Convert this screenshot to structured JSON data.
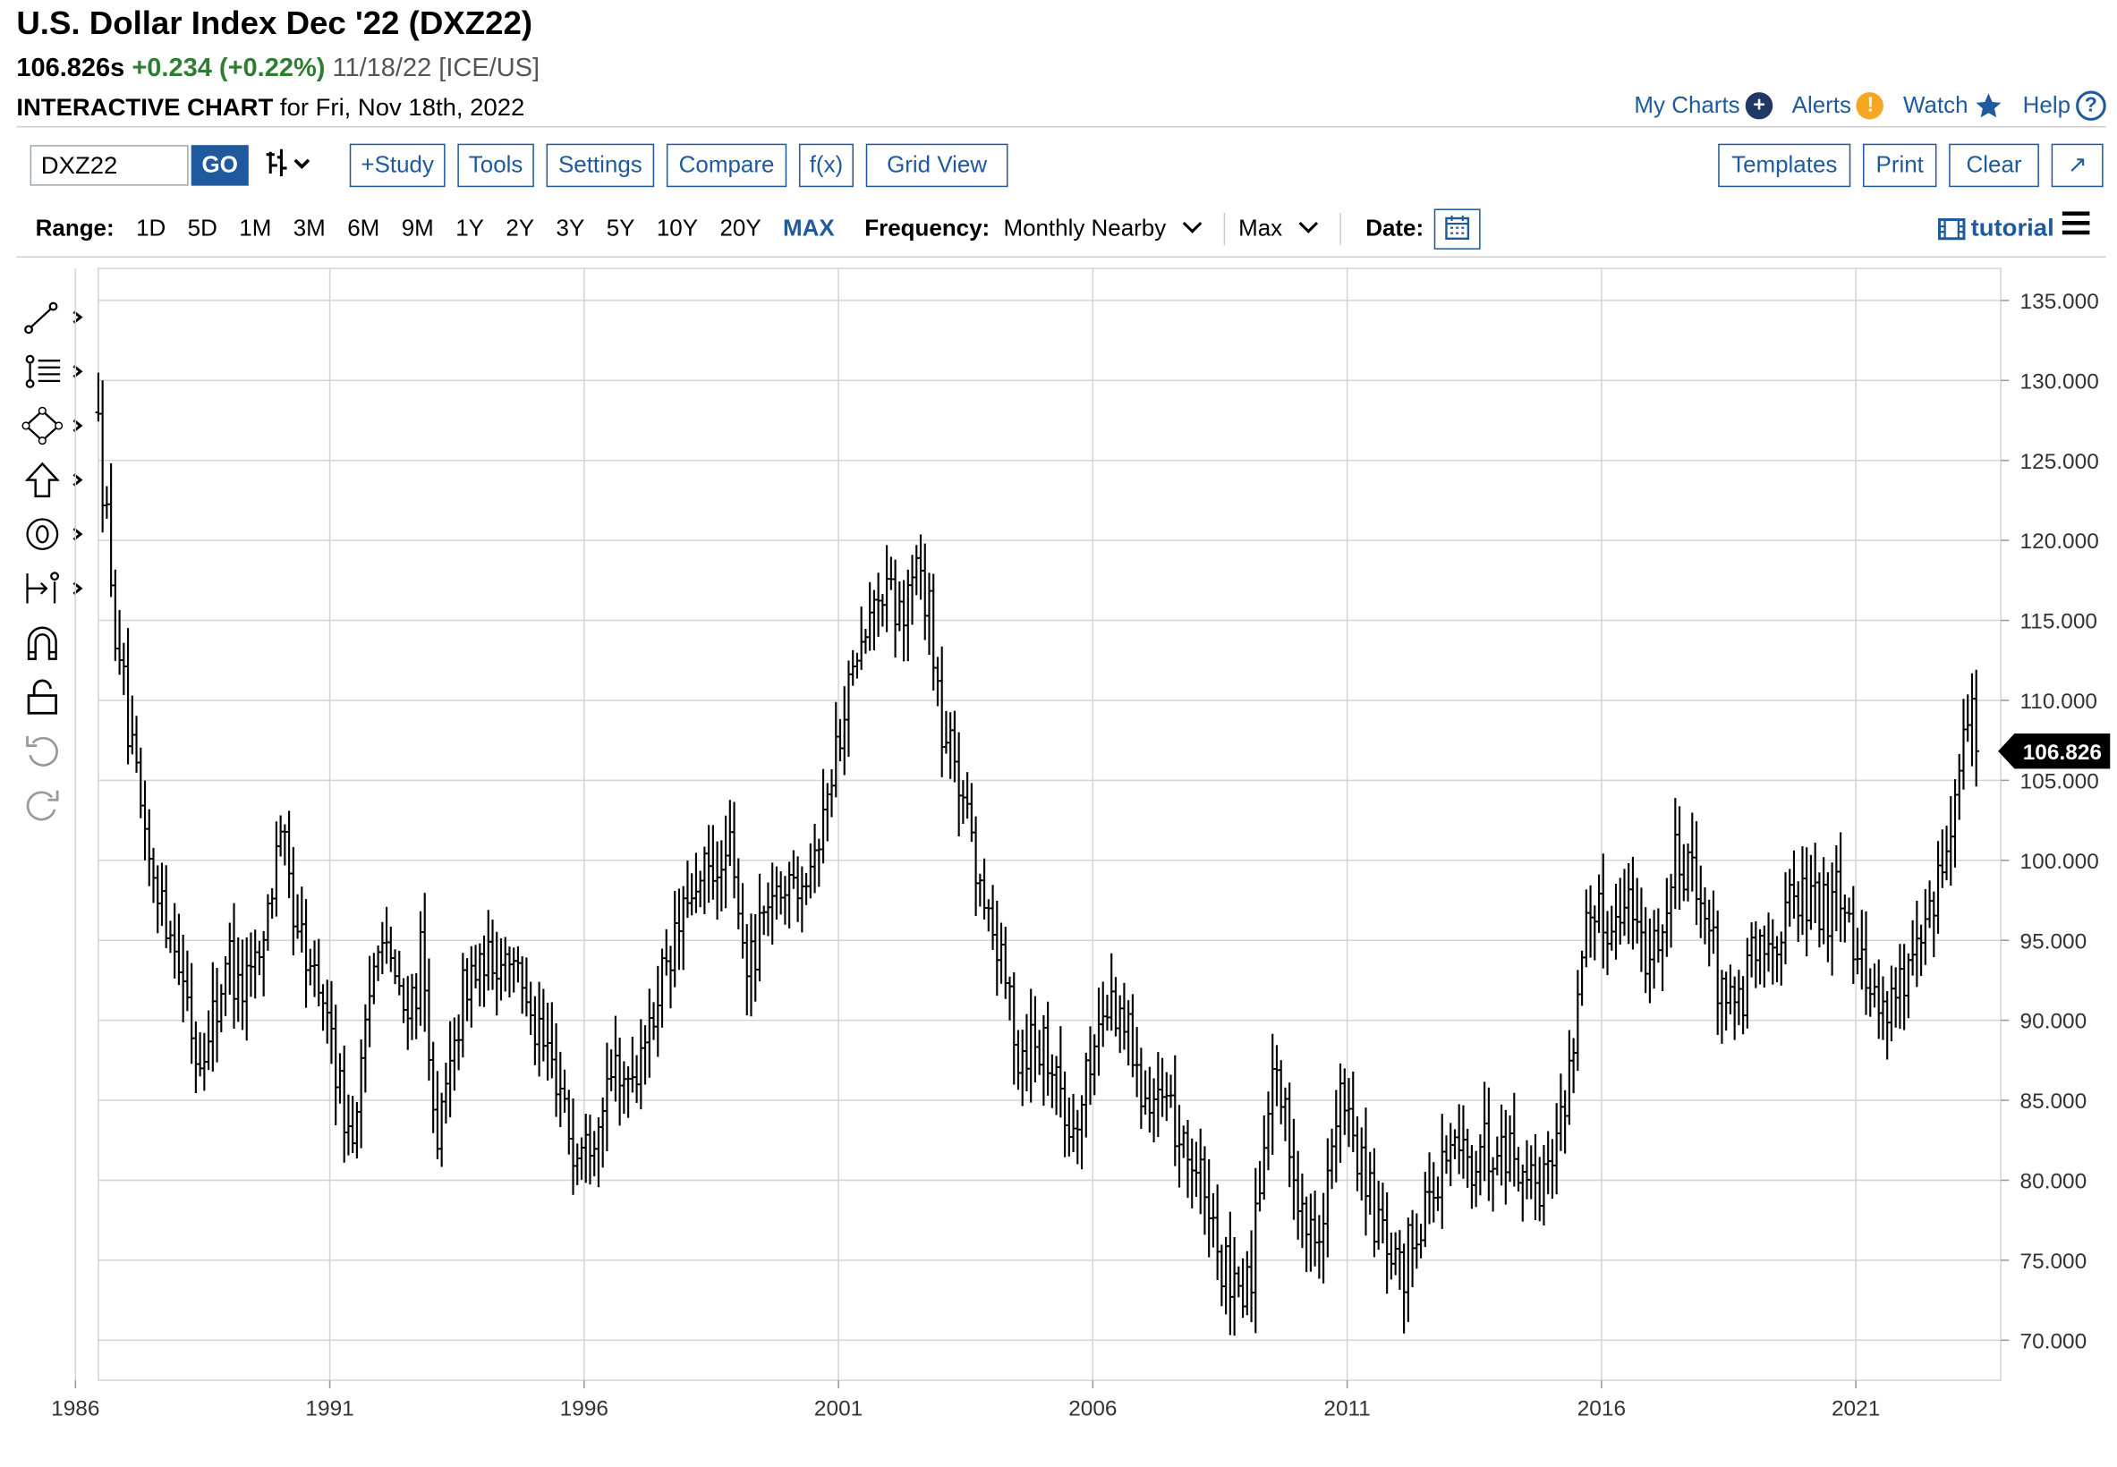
{
  "header": {
    "title": "U.S. Dollar Index Dec '22 (DXZ22)",
    "last": "106.826s",
    "change": "+0.234 (+0.22%)",
    "meta": "11/18/22 [ICE/US]",
    "ic_label": "INTERACTIVE CHART",
    "ic_date": "for Fri, Nov 18th, 2022"
  },
  "toplinks": {
    "my_charts": "My Charts",
    "alerts": "Alerts",
    "watch": "Watch",
    "help": "Help"
  },
  "toolbar": {
    "symbol": "DXZ22",
    "go": "GO",
    "study": "+Study",
    "tools": "Tools",
    "settings": "Settings",
    "compare": "Compare",
    "fx": "f(x)",
    "grid_view": "Grid View",
    "templates": "Templates",
    "print": "Print",
    "clear": "Clear",
    "expand": "↗"
  },
  "rangebar": {
    "range_label": "Range:",
    "ranges": [
      "1D",
      "5D",
      "1M",
      "3M",
      "6M",
      "9M",
      "1Y",
      "2Y",
      "3Y",
      "5Y",
      "10Y",
      "20Y",
      "MAX"
    ],
    "selected": "MAX",
    "frequency_label": "Frequency:",
    "frequency": "Monthly Nearby",
    "max_label": "Max",
    "date_label": "Date:",
    "tutorial": "tutorial"
  },
  "colors": {
    "accent": "#1f5a9e",
    "up": "#2e7d32",
    "bars": "#000000",
    "grid": "#d4d4d4"
  },
  "icons": [
    "line-tool-icon",
    "fib-tool-icon",
    "shape-tool-icon",
    "arrow-tool-icon",
    "text-tool-icon",
    "measure-tool-icon",
    "magnet-icon",
    "lock-icon",
    "undo-icon",
    "redo-icon"
  ],
  "chart_data": {
    "type": "ohlc",
    "frequency": "monthly",
    "y_ticks": [
      "135.000",
      "130.000",
      "125.000",
      "120.000",
      "115.000",
      "110.000",
      "105.000",
      "100.000",
      "95.000",
      "90.000",
      "85.000",
      "80.000",
      "75.000",
      "70.000"
    ],
    "ylim": [
      67.5,
      137
    ],
    "x_tick_labels": [
      "1986",
      "1991",
      "1996",
      "2001",
      "2006",
      "2011",
      "2016",
      "2021"
    ],
    "xlim": [
      1985.95,
      2023.35
    ],
    "last_price_label": "106.826",
    "grid": true,
    "anchors": [
      [
        1985.95,
        128
      ],
      [
        1986.2,
        117
      ],
      [
        1986.6,
        106
      ],
      [
        1987.0,
        99
      ],
      [
        1987.4,
        96
      ],
      [
        1987.9,
        87.5
      ],
      [
        1988.2,
        90
      ],
      [
        1988.5,
        94
      ],
      [
        1988.8,
        92
      ],
      [
        1989.2,
        95
      ],
      [
        1989.5,
        102
      ],
      [
        1989.8,
        96
      ],
      [
        1990.1,
        93
      ],
      [
        1990.5,
        90
      ],
      [
        1990.8,
        84
      ],
      [
        1991.0,
        83
      ],
      [
        1991.2,
        90
      ],
      [
        1991.5,
        96
      ],
      [
        1991.8,
        92
      ],
      [
        1992.0,
        90
      ],
      [
        1992.3,
        94
      ],
      [
        1992.6,
        82
      ],
      [
        1992.8,
        85
      ],
      [
        1993.0,
        90
      ],
      [
        1993.3,
        93
      ],
      [
        1993.6,
        93
      ],
      [
        1994.0,
        95
      ],
      [
        1994.3,
        92
      ],
      [
        1994.7,
        88
      ],
      [
        1995.0,
        86
      ],
      [
        1995.3,
        82
      ],
      [
        1995.7,
        84
      ],
      [
        1996.0,
        86
      ],
      [
        1996.5,
        87
      ],
      [
        1997.0,
        92
      ],
      [
        1997.5,
        97
      ],
      [
        1998.0,
        99
      ],
      [
        1998.4,
        100
      ],
      [
        1998.7,
        93
      ],
      [
        1999.0,
        96
      ],
      [
        1999.5,
        99
      ],
      [
        2000.0,
        100
      ],
      [
        2000.4,
        106
      ],
      [
        2000.8,
        112
      ],
      [
        2001.0,
        113
      ],
      [
        2001.3,
        117
      ],
      [
        2001.7,
        115
      ],
      [
        2002.0,
        118
      ],
      [
        2002.3,
        116
      ],
      [
        2002.5,
        108
      ],
      [
        2002.9,
        105
      ],
      [
        2003.3,
        98
      ],
      [
        2003.7,
        94
      ],
      [
        2004.0,
        88
      ],
      [
        2004.3,
        89
      ],
      [
        2004.7,
        88
      ],
      [
        2005.0,
        83
      ],
      [
        2005.3,
        85
      ],
      [
        2005.6,
        90
      ],
      [
        2005.9,
        91
      ],
      [
        2006.2,
        89
      ],
      [
        2006.5,
        86
      ],
      [
        2006.9,
        84
      ],
      [
        2007.2,
        83
      ],
      [
        2007.6,
        80
      ],
      [
        2007.9,
        76
      ],
      [
        2008.3,
        72
      ],
      [
        2008.6,
        74
      ],
      [
        2008.9,
        85
      ],
      [
        2009.1,
        87
      ],
      [
        2009.4,
        81
      ],
      [
        2009.8,
        76
      ],
      [
        2010.0,
        78
      ],
      [
        2010.4,
        85
      ],
      [
        2010.7,
        82
      ],
      [
        2011.0,
        78
      ],
      [
        2011.3,
        75
      ],
      [
        2011.6,
        74
      ],
      [
        2011.9,
        78
      ],
      [
        2012.3,
        80
      ],
      [
        2012.6,
        82
      ],
      [
        2013.0,
        81
      ],
      [
        2013.5,
        83
      ],
      [
        2013.9,
        81
      ],
      [
        2014.3,
        80
      ],
      [
        2014.6,
        82
      ],
      [
        2014.9,
        88
      ],
      [
        2015.2,
        96
      ],
      [
        2015.6,
        96
      ],
      [
        2016.0,
        98
      ],
      [
        2016.4,
        94
      ],
      [
        2016.8,
        97
      ],
      [
        2017.0,
        101
      ],
      [
        2017.4,
        98
      ],
      [
        2017.8,
        93
      ],
      [
        2018.1,
        90
      ],
      [
        2018.4,
        93
      ],
      [
        2018.8,
        95
      ],
      [
        2019.2,
        97
      ],
      [
        2019.6,
        98
      ],
      [
        2019.9,
        97
      ],
      [
        2020.2,
        99
      ],
      [
        2020.4,
        96
      ],
      [
        2020.7,
        93
      ],
      [
        2021.0,
        91
      ],
      [
        2021.3,
        92
      ],
      [
        2021.6,
        93
      ],
      [
        2021.9,
        96
      ],
      [
        2022.2,
        99
      ],
      [
        2022.5,
        105
      ],
      [
        2022.75,
        111
      ],
      [
        2022.88,
        108
      ]
    ]
  }
}
